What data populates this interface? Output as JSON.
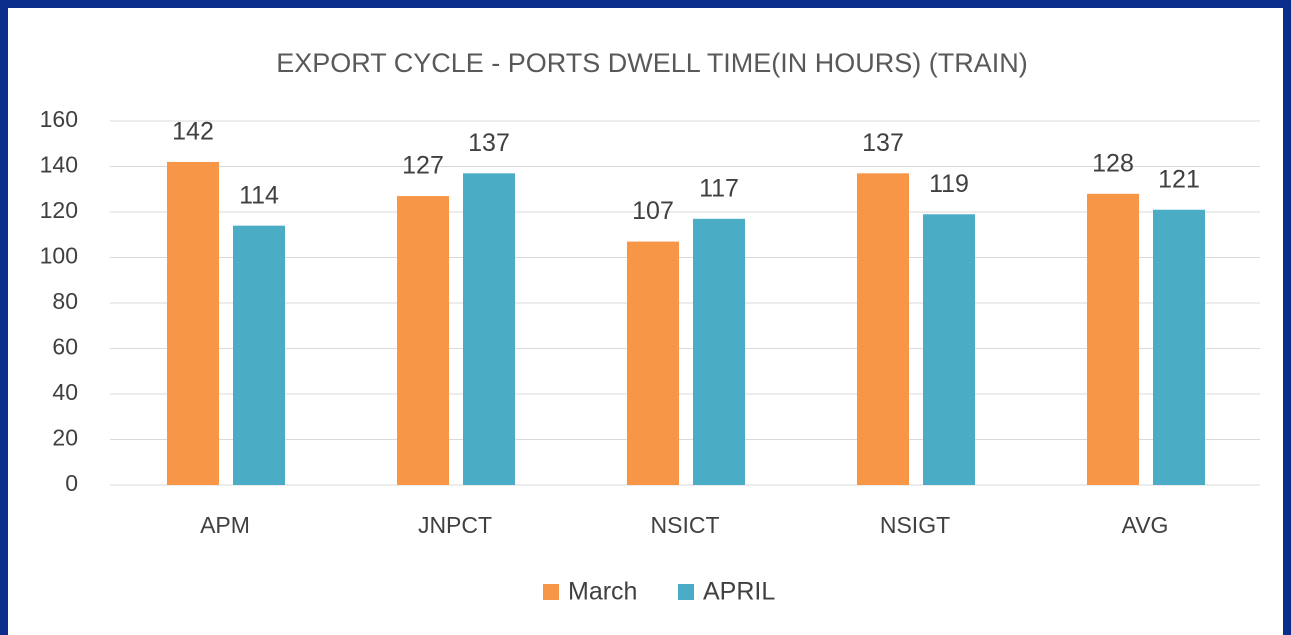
{
  "chart_data": {
    "type": "bar",
    "title": "EXPORT CYCLE -  PORTS DWELL TIME(IN HOURS) (TRAIN)",
    "categories": [
      "APM",
      "JNPCT",
      "NSICT",
      "NSIGT",
      "AVG"
    ],
    "series": [
      {
        "name": "March",
        "color": "#f79646",
        "values": [
          142,
          127,
          107,
          137,
          128
        ]
      },
      {
        "name": "APRIL",
        "color": "#4bacc6",
        "values": [
          114,
          137,
          117,
          119,
          121
        ]
      }
    ],
    "ylim": [
      0,
      160
    ],
    "yticks": [
      0,
      20,
      40,
      60,
      80,
      100,
      120,
      140,
      160
    ],
    "grid": true,
    "legend": "bottom"
  }
}
